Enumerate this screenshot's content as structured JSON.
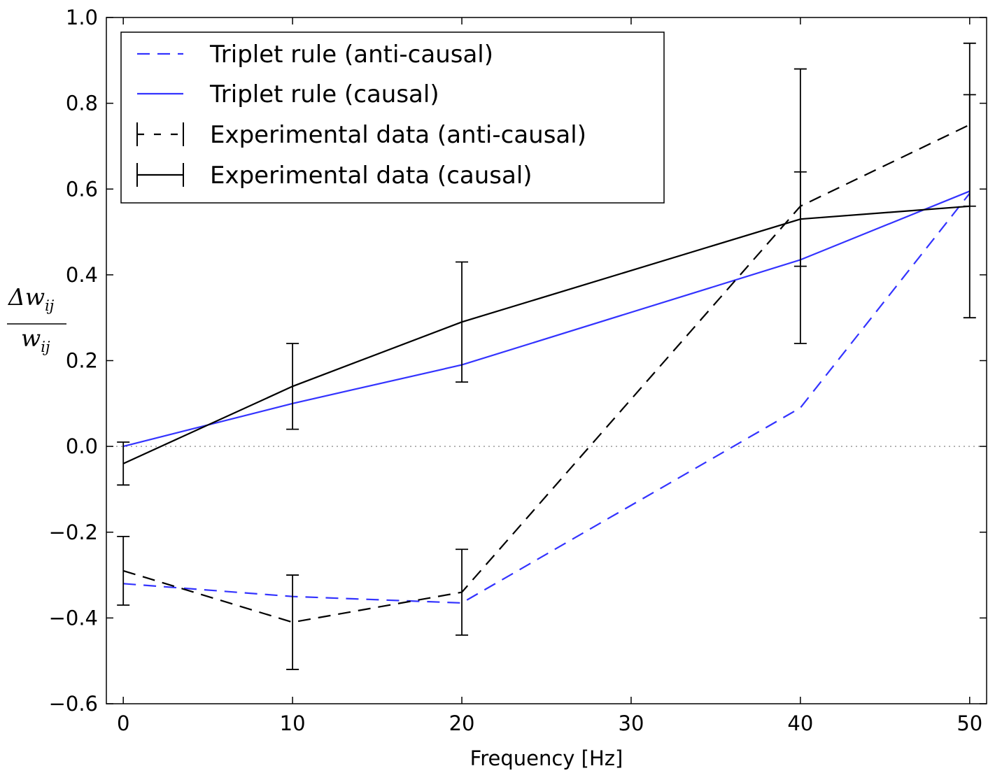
{
  "chart_data": {
    "type": "line",
    "title": "",
    "xlabel": "Frequency [Hz]",
    "ylabel": {
      "numerator_symbol": "Δw",
      "numerator_sub": "ij",
      "denominator_symbol": "w",
      "denominator_sub": "ij"
    },
    "xlim": [
      -1,
      51
    ],
    "ylim": [
      -0.6,
      1.0
    ],
    "x_ticks": [
      0,
      10,
      20,
      30,
      40,
      50
    ],
    "x_tick_labels": [
      "0",
      "10",
      "20",
      "30",
      "40",
      "50"
    ],
    "y_ticks": [
      -0.6,
      -0.4,
      -0.2,
      0.0,
      0.2,
      0.4,
      0.6,
      0.8,
      1.0
    ],
    "y_tick_labels": [
      "−0.6",
      "−0.4",
      "−0.2",
      "0.0",
      "0.2",
      "0.4",
      "0.6",
      "0.8",
      "1.0"
    ],
    "grid": false,
    "reference_line": {
      "y": 0.0,
      "style": "dotted",
      "color": "#999999"
    },
    "legend_position": "top-left",
    "series": [
      {
        "name": "Triplet rule (anti-causal)",
        "color": "#3333ff",
        "dash": "dashed",
        "x": [
          0,
          10,
          20,
          40,
          50
        ],
        "y": [
          -0.32,
          -0.35,
          -0.365,
          0.09,
          0.59
        ]
      },
      {
        "name": "Triplet rule (causal)",
        "color": "#3333ff",
        "dash": "solid",
        "x": [
          0,
          10,
          20,
          40,
          50
        ],
        "y": [
          0.0,
          0.1,
          0.19,
          0.435,
          0.595
        ]
      },
      {
        "name": "Experimental data (anti-causal)",
        "color": "#000000",
        "dash": "dashed",
        "errorbars": true,
        "x": [
          0,
          10,
          20,
          40,
          50
        ],
        "y": [
          -0.29,
          -0.41,
          -0.34,
          0.56,
          0.75
        ],
        "err": [
          0.08,
          0.11,
          0.1,
          0.32,
          0.19
        ]
      },
      {
        "name": "Experimental data (causal)",
        "color": "#000000",
        "dash": "solid",
        "errorbars": true,
        "x": [
          0,
          10,
          20,
          40,
          50
        ],
        "y": [
          -0.04,
          0.14,
          0.29,
          0.53,
          0.56
        ],
        "err": [
          0.05,
          0.1,
          0.14,
          0.11,
          0.26
        ]
      }
    ]
  }
}
